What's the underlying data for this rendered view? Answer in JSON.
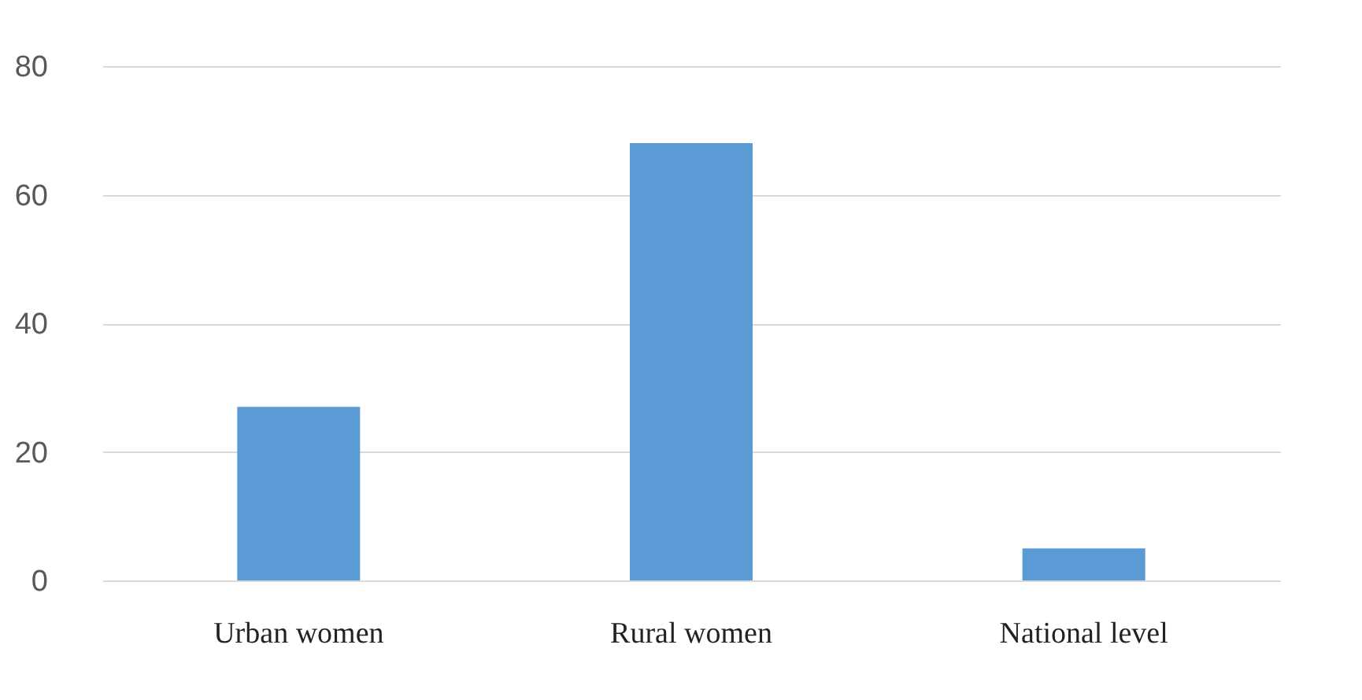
{
  "chart_data": {
    "type": "bar",
    "categories": [
      "Urban women",
      "Rural women",
      "National level"
    ],
    "values": [
      27,
      68,
      5
    ],
    "color": "#5b9bd5",
    "ylim": [
      0,
      80
    ],
    "yticks": [
      0,
      20,
      40,
      60,
      80
    ],
    "grid": "y"
  }
}
